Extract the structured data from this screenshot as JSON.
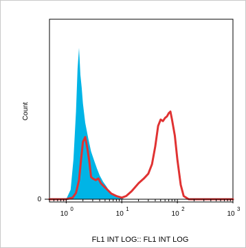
{
  "chart_data": {
    "type": "area",
    "xlabel": "FL1 INT LOG:: FL1 INT LOG",
    "ylabel": "Count",
    "x_scale": "log",
    "xlim": [
      0.5,
      1000
    ],
    "ylim": [
      0,
      1.0
    ],
    "x_ticks": [
      {
        "value": 1,
        "base": "10",
        "exp": "0"
      },
      {
        "value": 10,
        "base": "10",
        "exp": "1"
      },
      {
        "value": 100,
        "base": "10",
        "exp": "2"
      },
      {
        "value": 1000,
        "base": "10",
        "exp": "3"
      }
    ],
    "y_ticks": [
      {
        "value": 0,
        "label": "0"
      }
    ],
    "grid": false,
    "series": [
      {
        "style": "filled",
        "color": "#00b4e6",
        "x": [
          0.5,
          1.0,
          1.2,
          1.35,
          1.5,
          1.6,
          1.7,
          1.8,
          1.9,
          2.0,
          2.2,
          2.5,
          2.8,
          3.2,
          3.6,
          4.0,
          4.6,
          5.3,
          6.0,
          7.0,
          8.0,
          9.0,
          10.0,
          12.0,
          15.0,
          1000
        ],
        "y": [
          0.0,
          0.0,
          0.06,
          0.25,
          0.55,
          0.82,
          0.95,
          0.78,
          0.7,
          0.6,
          0.48,
          0.38,
          0.3,
          0.24,
          0.19,
          0.15,
          0.11,
          0.08,
          0.05,
          0.03,
          0.02,
          0.01,
          0.005,
          0.0,
          0.0,
          0.0
        ]
      },
      {
        "style": "line",
        "color": "#e03232",
        "x": [
          0.5,
          1.0,
          1.3,
          1.5,
          1.7,
          1.85,
          2.0,
          2.2,
          2.4,
          2.6,
          2.8,
          3.0,
          3.4,
          3.8,
          4.2,
          4.8,
          5.5,
          6.5,
          8.0,
          10.0,
          12.0,
          15.0,
          20.0,
          25.0,
          30.0,
          35.0,
          40.0,
          45.0,
          50.0,
          55.0,
          60.0,
          65.0,
          70.0,
          75.0,
          80.0,
          90.0,
          100.0,
          115.0,
          130.0,
          160.0,
          200.0,
          1000
        ],
        "y": [
          0.0,
          0.0,
          0.01,
          0.04,
          0.12,
          0.25,
          0.36,
          0.39,
          0.32,
          0.24,
          0.14,
          0.13,
          0.12,
          0.13,
          0.1,
          0.08,
          0.06,
          0.035,
          0.02,
          0.01,
          0.02,
          0.05,
          0.1,
          0.13,
          0.16,
          0.22,
          0.33,
          0.46,
          0.5,
          0.49,
          0.51,
          0.52,
          0.54,
          0.55,
          0.5,
          0.4,
          0.25,
          0.09,
          0.02,
          0.0,
          0.0,
          0.0
        ]
      }
    ]
  }
}
